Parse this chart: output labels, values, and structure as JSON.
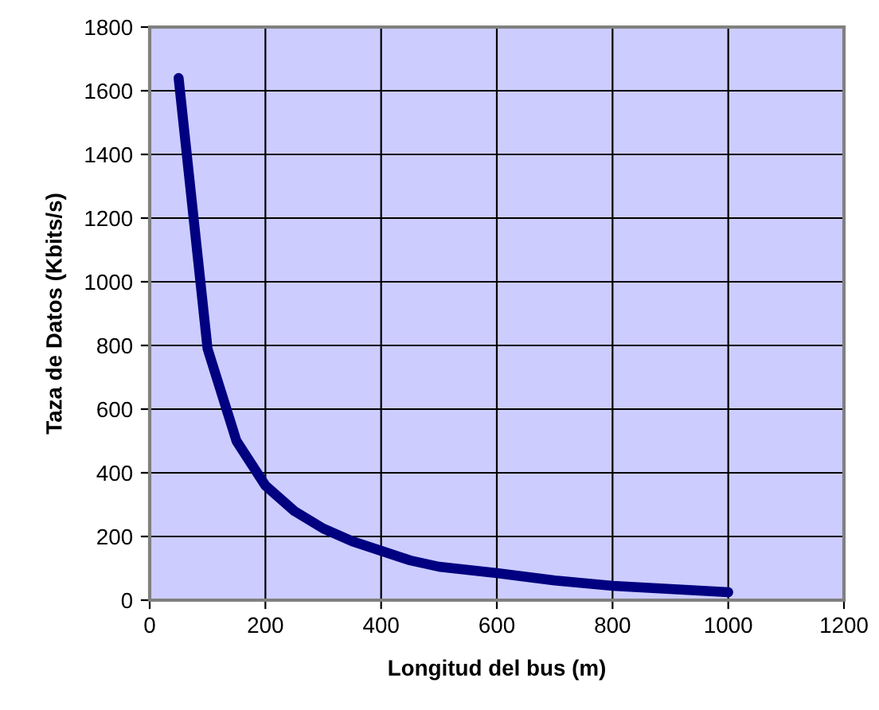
{
  "chart_data": {
    "type": "line",
    "xlabel": "Longitud del bus (m)",
    "ylabel": "Taza de Datos (Kbits/s)",
    "x": [
      50,
      100,
      150,
      200,
      250,
      300,
      350,
      400,
      450,
      500,
      600,
      700,
      800,
      900,
      1000
    ],
    "series": [
      {
        "color": "#000080",
        "values": [
          1640,
          790,
          500,
          360,
          280,
          225,
          185,
          155,
          125,
          105,
          85,
          62,
          45,
          35,
          25
        ]
      }
    ],
    "xlim": [
      0,
      1200
    ],
    "xticks": [
      0,
      200,
      400,
      600,
      800,
      1000,
      1200
    ],
    "ylim": [
      0,
      1800
    ],
    "yticks": [
      0,
      200,
      400,
      600,
      800,
      1000,
      1200,
      1400,
      1600,
      1800
    ],
    "grid": true,
    "legend": false,
    "marker": "none",
    "line_style": "solid"
  }
}
